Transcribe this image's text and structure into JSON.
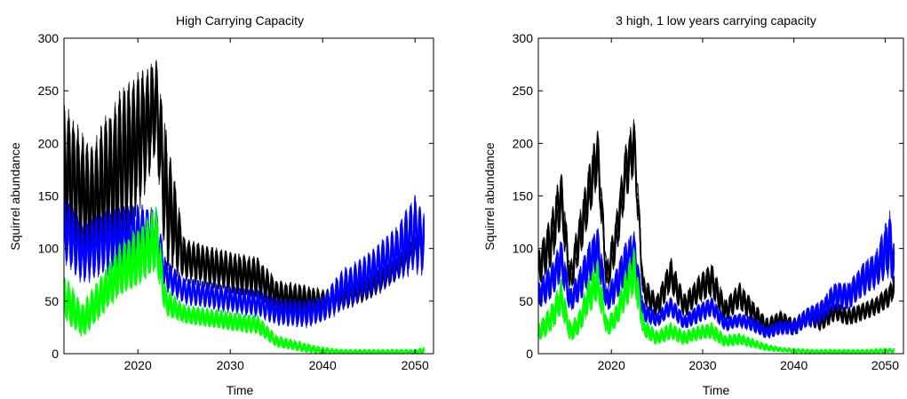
{
  "colors": {
    "black_series": "#000000",
    "blue_series": "#0000ff",
    "green_series": "#00ff00",
    "axis": "#000000",
    "background": "#ffffff"
  },
  "chart_data": [
    {
      "type": "line",
      "title": "High Carrying Capacity",
      "xlabel": "Time",
      "ylabel": "Squirrel abundance",
      "xlim": [
        2012,
        2052
      ],
      "ylim": [
        0,
        300
      ],
      "xticks": [
        2020,
        2030,
        2040,
        2050
      ],
      "yticks": [
        0,
        50,
        100,
        150,
        200,
        250,
        300
      ],
      "grid": false,
      "series": [
        {
          "color": "#000000",
          "x": [
            2012,
            2015,
            2018,
            2020,
            2022,
            2023,
            2025,
            2028,
            2031,
            2033,
            2035,
            2038,
            2040,
            2042,
            2045,
            2048,
            2050,
            2051
          ],
          "values": [
            170,
            140,
            175,
            200,
            235,
            150,
            90,
            82,
            75,
            72,
            55,
            50,
            48,
            52,
            62,
            80,
            100,
            110
          ],
          "band": [
            65,
            50,
            70,
            60,
            40,
            60,
            18,
            18,
            18,
            18,
            14,
            14,
            12,
            10,
            10,
            10,
            10,
            10
          ]
        },
        {
          "color": "#0000ff",
          "x": [
            2012,
            2014,
            2016,
            2018,
            2020,
            2022,
            2023,
            2025,
            2028,
            2031,
            2033,
            2035,
            2038,
            2040,
            2042,
            2045,
            2048,
            2050,
            2051
          ],
          "values": [
            120,
            95,
            105,
            110,
            112,
            110,
            75,
            60,
            55,
            50,
            48,
            40,
            38,
            42,
            60,
            75,
            95,
            115,
            105
          ],
          "band": [
            32,
            26,
            28,
            28,
            28,
            28,
            14,
            12,
            12,
            12,
            12,
            12,
            12,
            12,
            18,
            20,
            25,
            35,
            28
          ]
        },
        {
          "color": "#00ff00",
          "x": [
            2012,
            2014,
            2016,
            2018,
            2020,
            2022,
            2023,
            2025,
            2028,
            2031,
            2033,
            2035,
            2038,
            2040,
            2042,
            2045,
            2048,
            2050,
            2051
          ],
          "values": [
            55,
            32,
            55,
            80,
            92,
            110,
            50,
            38,
            34,
            30,
            28,
            12,
            6,
            3,
            2,
            2,
            2,
            2,
            3
          ],
          "band": [
            20,
            15,
            18,
            22,
            25,
            28,
            12,
            8,
            8,
            8,
            8,
            5,
            4,
            3,
            2,
            2,
            2,
            2,
            3
          ]
        }
      ]
    },
    {
      "type": "line",
      "title": "3 high, 1 low years carrying capacity",
      "xlabel": "Time",
      "ylabel": "Squirrel abundance",
      "xlim": [
        2012,
        2052
      ],
      "ylim": [
        0,
        300
      ],
      "xticks": [
        2020,
        2030,
        2040,
        2050
      ],
      "yticks": [
        0,
        50,
        100,
        150,
        200,
        250,
        300
      ],
      "grid": false,
      "series": [
        {
          "color": "#000000",
          "x": [
            2012,
            2013.5,
            2014.5,
            2015.5,
            2016.5,
            2017.5,
            2018.5,
            2019.5,
            2020.5,
            2021.5,
            2022.5,
            2023.5,
            2025,
            2026.5,
            2028,
            2029.5,
            2031,
            2032.5,
            2034,
            2035.5,
            2037,
            2038.5,
            2040,
            2041.5,
            2043,
            2044.5,
            2046,
            2047.5,
            2049,
            2050.5,
            2051
          ],
          "values": [
            80,
            110,
            150,
            70,
            110,
            150,
            190,
            70,
            110,
            170,
            200,
            60,
            45,
            75,
            45,
            60,
            70,
            40,
            55,
            40,
            25,
            32,
            25,
            35,
            30,
            40,
            35,
            40,
            45,
            55,
            65
          ],
          "band": [
            15,
            25,
            25,
            15,
            20,
            25,
            25,
            15,
            20,
            25,
            25,
            12,
            10,
            15,
            10,
            12,
            15,
            10,
            12,
            10,
            8,
            8,
            8,
            8,
            8,
            8,
            8,
            8,
            8,
            10,
            10
          ]
        },
        {
          "color": "#0000ff",
          "x": [
            2012,
            2013.5,
            2014.5,
            2015.5,
            2016.5,
            2017.5,
            2018.5,
            2019.5,
            2020.5,
            2021.5,
            2022.5,
            2023.5,
            2025,
            2026.5,
            2028,
            2029.5,
            2031,
            2032.5,
            2034,
            2035.5,
            2037,
            2038.5,
            2040,
            2041.5,
            2043,
            2044.5,
            2046,
            2047.5,
            2049,
            2050.5,
            2051
          ],
          "values": [
            55,
            70,
            90,
            50,
            65,
            85,
            100,
            50,
            65,
            85,
            95,
            40,
            32,
            45,
            30,
            38,
            45,
            28,
            32,
            28,
            20,
            25,
            25,
            35,
            40,
            55,
            55,
            70,
            80,
            105,
            85
          ],
          "band": [
            12,
            15,
            18,
            10,
            14,
            18,
            20,
            10,
            14,
            18,
            20,
            8,
            6,
            8,
            6,
            8,
            8,
            6,
            6,
            6,
            5,
            6,
            6,
            8,
            10,
            12,
            12,
            14,
            16,
            28,
            18
          ]
        },
        {
          "color": "#00ff00",
          "x": [
            2012,
            2013.5,
            2014.5,
            2015.5,
            2016.5,
            2017.5,
            2018.5,
            2019.5,
            2020.5,
            2021.5,
            2022.5,
            2023.5,
            2025,
            2026.5,
            2028,
            2029.5,
            2031,
            2032.5,
            2034,
            2035.5,
            2037,
            2038.5,
            2040,
            2042,
            2045,
            2048,
            2050,
            2051
          ],
          "values": [
            20,
            35,
            55,
            20,
            30,
            55,
            70,
            25,
            35,
            60,
            80,
            25,
            15,
            22,
            15,
            20,
            22,
            12,
            14,
            10,
            6,
            4,
            3,
            2,
            2,
            2,
            3,
            3
          ],
          "band": [
            8,
            12,
            15,
            8,
            10,
            15,
            18,
            8,
            10,
            16,
            20,
            8,
            6,
            7,
            6,
            6,
            7,
            5,
            5,
            4,
            3,
            2,
            2,
            2,
            2,
            2,
            2,
            2
          ]
        }
      ]
    }
  ]
}
